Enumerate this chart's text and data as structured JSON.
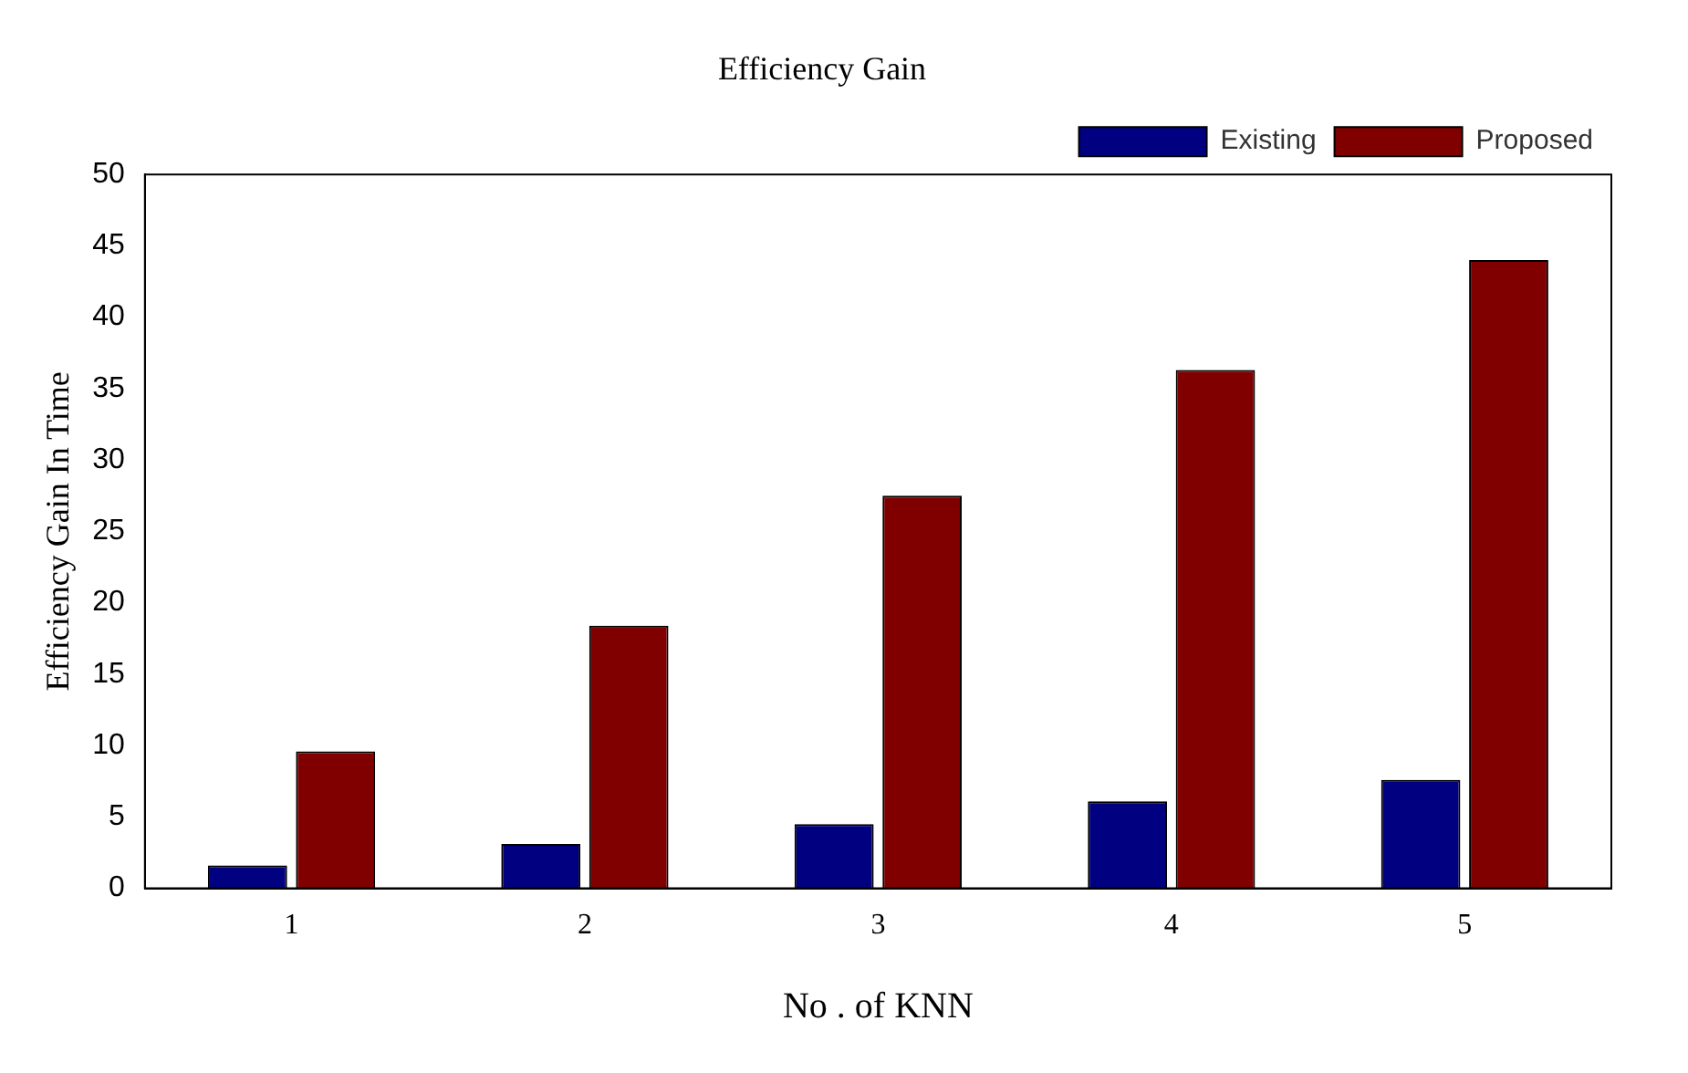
{
  "chart_data": {
    "type": "bar",
    "title": "Efficiency Gain",
    "xlabel": "No . of KNN",
    "ylabel": "Efficiency Gain In Time",
    "categories": [
      "1",
      "2",
      "3",
      "4",
      "5"
    ],
    "series": [
      {
        "name": "Existing",
        "color": "#000080",
        "values": [
          1.6,
          3.1,
          4.5,
          6.1,
          7.6
        ]
      },
      {
        "name": "Proposed",
        "color": "#800000",
        "values": [
          9.6,
          18.4,
          27.5,
          36.3,
          44
        ]
      }
    ],
    "ylim": [
      0,
      50
    ],
    "yticks": [
      0,
      5,
      10,
      15,
      20,
      25,
      30,
      35,
      40,
      45,
      50
    ],
    "grid": false,
    "legend": "top right"
  }
}
